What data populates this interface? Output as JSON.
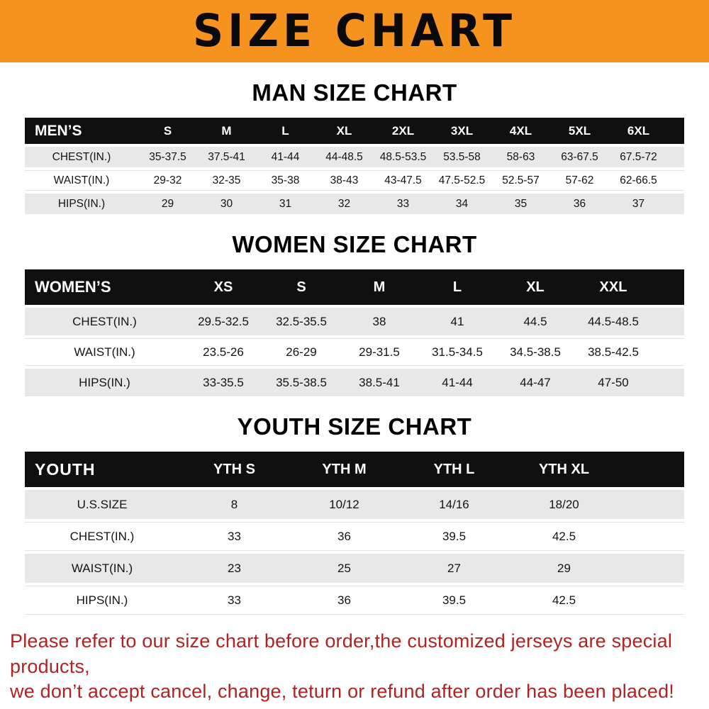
{
  "banner": {
    "title": "SIZE CHART",
    "bg_color": "#f6921e"
  },
  "chart_data": [
    {
      "type": "table",
      "title": "MAN SIZE CHART",
      "columns": [
        "MEN’S",
        "S",
        "M",
        "L",
        "XL",
        "2XL",
        "3XL",
        "4XL",
        "5XL",
        "6XL"
      ],
      "rows": [
        [
          "CHEST(IN.)",
          "35-37.5",
          "37.5-41",
          "41-44",
          "44-48.5",
          "48.5-53.5",
          "53.5-58",
          "58-63",
          "63-67.5",
          "67.5-72"
        ],
        [
          "WAIST(IN.)",
          "29-32",
          "32-35",
          "35-38",
          "38-43",
          "43-47.5",
          "47.5-52.5",
          "52.5-57",
          "57-62",
          "62-66.5"
        ],
        [
          "HIPS(IN.)",
          "29",
          "30",
          "31",
          "32",
          "33",
          "34",
          "35",
          "36",
          "37"
        ]
      ]
    },
    {
      "type": "table",
      "title": "WOMEN SIZE CHART",
      "columns": [
        "WOMEN’S",
        "XS",
        "S",
        "M",
        "L",
        "XL",
        "XXL"
      ],
      "rows": [
        [
          "CHEST(IN.)",
          "29.5-32.5",
          "32.5-35.5",
          "38",
          "41",
          "44.5",
          "44.5-48.5"
        ],
        [
          "WAIST(IN.)",
          "23.5-26",
          "26-29",
          "29-31.5",
          "31.5-34.5",
          "34.5-38.5",
          "38.5-42.5"
        ],
        [
          "HIPS(IN.)",
          "33-35.5",
          "35.5-38.5",
          "38.5-41",
          "41-44",
          "44-47",
          "47-50"
        ]
      ]
    },
    {
      "type": "table",
      "title": "YOUTH SIZE CHART",
      "columns": [
        "YOUTH",
        "YTH S",
        "YTH M",
        "YTH L",
        "YTH XL"
      ],
      "rows": [
        [
          "U.S.SIZE",
          "8",
          "10/12",
          "14/16",
          "18/20"
        ],
        [
          "CHEST(IN.)",
          "33",
          "36",
          "39.5",
          "42.5"
        ],
        [
          "WAIST(IN.)",
          "23",
          "25",
          "27",
          "29"
        ],
        [
          "HIPS(IN.)",
          "33",
          "36",
          "39.5",
          "42.5"
        ]
      ]
    }
  ],
  "disclaimer": {
    "lines": [
      "Please refer to our size chart before order,the customized jerseys are special products,",
      "we don’t accept cancel, change, teturn or refund after order has been placed!"
    ],
    "text_color": "#b22222"
  }
}
